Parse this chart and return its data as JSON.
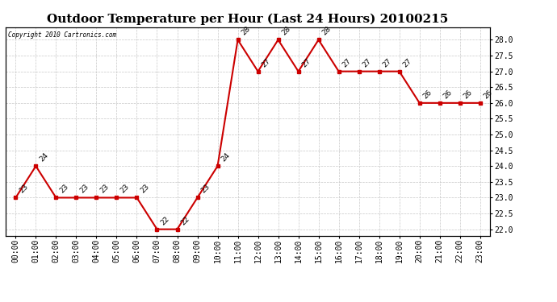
{
  "title": "Outdoor Temperature per Hour (Last 24 Hours) 20100215",
  "copyright_text": "Copyright 2010 Cartronics.com",
  "hours": [
    "00:00",
    "01:00",
    "02:00",
    "03:00",
    "04:00",
    "05:00",
    "06:00",
    "07:00",
    "08:00",
    "09:00",
    "10:00",
    "11:00",
    "12:00",
    "13:00",
    "14:00",
    "15:00",
    "16:00",
    "17:00",
    "18:00",
    "19:00",
    "20:00",
    "21:00",
    "22:00",
    "23:00"
  ],
  "values": [
    23,
    24,
    23,
    23,
    23,
    23,
    23,
    22,
    22,
    23,
    24,
    28,
    27,
    28,
    27,
    28,
    27,
    27,
    27,
    27,
    26,
    26,
    26,
    26
  ],
  "line_color": "#cc0000",
  "marker_color": "#cc0000",
  "marker": "s",
  "marker_size": 3,
  "ylim": [
    21.8,
    28.4
  ],
  "ytick_min": 22.0,
  "ytick_max": 28.0,
  "ytick_step": 0.5,
  "bg_color": "#ffffff",
  "grid_color": "#c8c8c8",
  "label_fontsize": 7,
  "title_fontsize": 11,
  "annotation_fontsize": 6.5
}
